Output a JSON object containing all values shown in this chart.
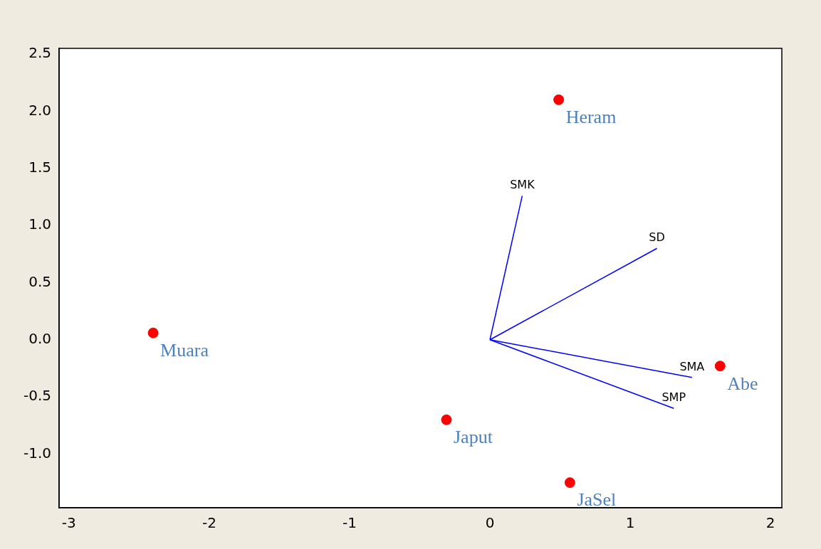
{
  "chart_data": {
    "type": "scatter",
    "xlim": [
      -3.07,
      2.08
    ],
    "ylim": [
      -1.47,
      2.55
    ],
    "xticks": [
      -3,
      -2,
      -1,
      0,
      1,
      2
    ],
    "yticks": [
      {
        "value": -1,
        "label": "-1.0"
      },
      {
        "value": -0.5,
        "label": "-0.5"
      },
      {
        "value": 0,
        "label": "0.0"
      },
      {
        "value": 0.5,
        "label": "0.5"
      },
      {
        "value": 1,
        "label": "1.0"
      },
      {
        "value": 1.5,
        "label": "1.5"
      },
      {
        "value": 2,
        "label": "2.0"
      },
      {
        "value": 2.5,
        "label": "2.5"
      }
    ],
    "grid": false,
    "legend": false,
    "series": [
      {
        "color": "#ff0000",
        "marker": "circle",
        "x": [
          0.49,
          -2.4,
          1.64,
          -0.31,
          0.57
        ],
        "values": [
          2.1,
          0.06,
          -0.23,
          -0.7,
          -1.25
        ]
      },
      {
        "type": "line",
        "name": "SMK",
        "color": "#0000ff",
        "marker": "none",
        "x": [
          0,
          0.23
        ],
        "values": [
          0,
          1.26
        ]
      },
      {
        "type": "line",
        "name": "SD",
        "color": "#0000ff",
        "marker": "none",
        "x": [
          0,
          1.19
        ],
        "values": [
          0,
          0.8
        ]
      },
      {
        "type": "line",
        "name": "SMA",
        "color": "#0000ff",
        "marker": "none",
        "x": [
          0,
          1.44
        ],
        "values": [
          0,
          -0.33
        ]
      },
      {
        "type": "line",
        "name": "SMP",
        "color": "#0000ff",
        "marker": "none",
        "x": [
          0,
          1.31
        ],
        "values": [
          0,
          -0.6
        ]
      }
    ],
    "annotations": [
      {
        "text": "Heram",
        "x": 0.49,
        "y": 2.1
      },
      {
        "text": "Muara",
        "x": -2.4,
        "y": 0.06
      },
      {
        "text": "Abe",
        "x": 1.64,
        "y": -0.23
      },
      {
        "text": "Japut",
        "x": -0.31,
        "y": -0.7
      },
      {
        "text": "JaSel",
        "x": 0.57,
        "y": -1.25
      }
    ]
  }
}
